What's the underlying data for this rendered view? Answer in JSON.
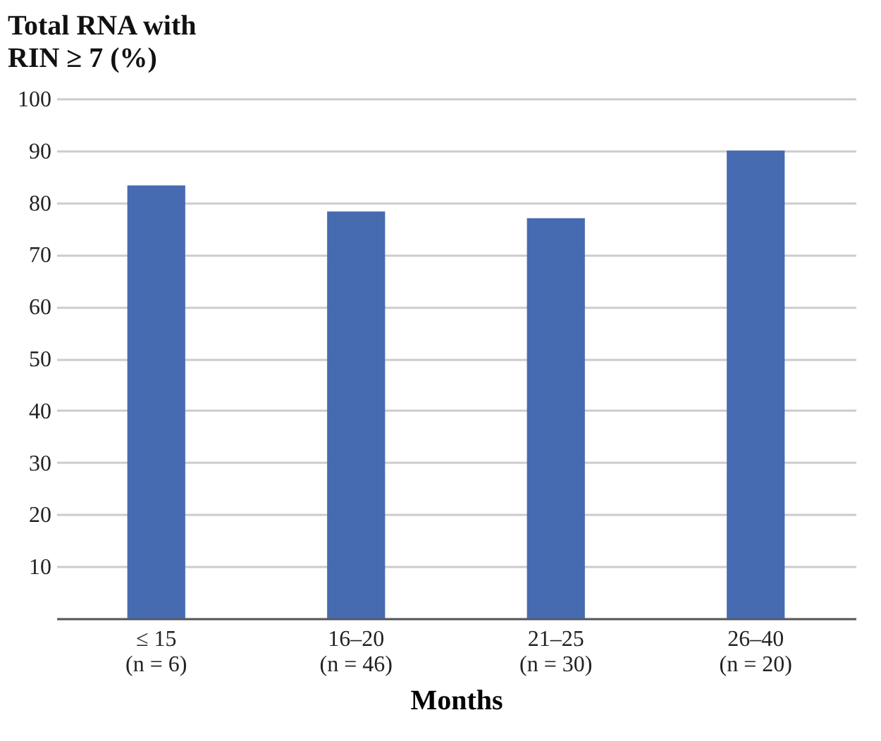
{
  "chart_data": {
    "type": "bar",
    "ylabel": "Total RNA with\nRIN ≥ 7 (%)",
    "xlabel": "Months",
    "categories": [
      "≤ 15\n(n = 6)",
      "16–20\n(n = 46)",
      "21–25\n(n = 30)",
      "26–40\n(n = 20)"
    ],
    "values": [
      83.3,
      78.3,
      77.0,
      90.0
    ],
    "color": "#466bb0",
    "ylim": [
      0,
      100
    ],
    "yticks": [
      10,
      20,
      30,
      40,
      50,
      60,
      70,
      80,
      90,
      100
    ],
    "grid": "y"
  }
}
